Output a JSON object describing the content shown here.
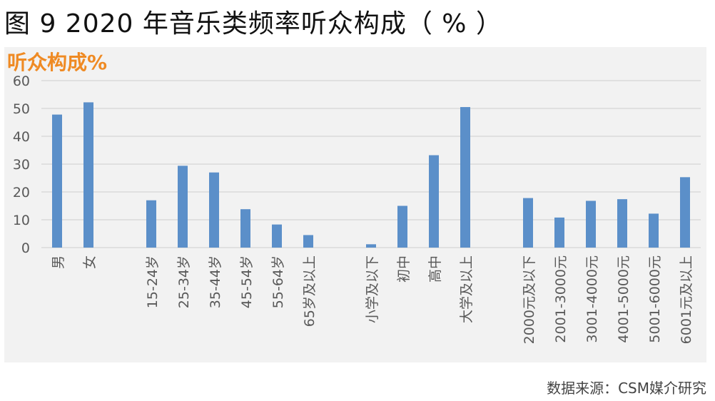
{
  "figure_title": "图 9  2020 年音乐类频率听众构成（ % ）",
  "unit_label": "听众构成%",
  "source": "数据来源：CSM媒介研究",
  "colors": {
    "bar": "#5b8fc9",
    "unit_label": "#ef8a23",
    "panel": "#f2f2f2",
    "grid": "#d9d9d9"
  },
  "chart_data": {
    "type": "bar",
    "title": "",
    "xlabel": "",
    "ylabel": "听众构成%",
    "ylim": [
      0,
      60
    ],
    "yticks": [
      0,
      10,
      20,
      30,
      40,
      50,
      60
    ],
    "grid": true,
    "categories": [
      "男",
      "女",
      "",
      "15-24岁",
      "25-34岁",
      "35-44岁",
      "45-54岁",
      "55-64岁",
      "65岁及以上",
      "",
      "小学及以下",
      "初中",
      "高中",
      "大学及以上",
      "",
      "2000元及以下",
      "2001-3000元",
      "3001-4000元",
      "4001-5000元",
      "5001-6000元",
      "6001元及以上"
    ],
    "values": [
      47.8,
      52.2,
      null,
      17.0,
      29.4,
      27.0,
      13.8,
      8.3,
      4.5,
      null,
      1.2,
      15.0,
      33.2,
      50.5,
      null,
      17.8,
      10.8,
      16.8,
      17.4,
      12.2,
      25.3
    ]
  }
}
